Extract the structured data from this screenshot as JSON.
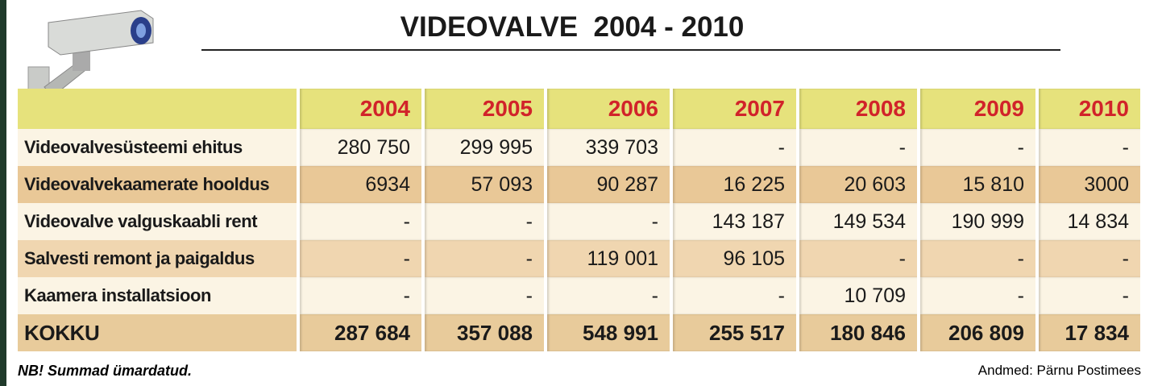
{
  "header": {
    "title": "VIDEOVALVE  2004 - 2010"
  },
  "table": {
    "columns": [
      "2004",
      "2005",
      "2006",
      "2007",
      "2008",
      "2009",
      "2010"
    ],
    "rows": [
      {
        "label": "Videovalvesüsteemi ehitus",
        "cells": [
          "280 750",
          "299 995",
          "339 703",
          "-",
          "-",
          "-",
          "-"
        ]
      },
      {
        "label": "Videovalvekaamerate hooldus",
        "cells": [
          "6934",
          "57 093",
          "90 287",
          "16 225",
          "20 603",
          "15 810",
          "3000"
        ]
      },
      {
        "label": "Videovalve valguskaabli rent",
        "cells": [
          "-",
          "-",
          "-",
          "143 187",
          "149 534",
          "190 999",
          "14 834"
        ]
      },
      {
        "label": "Salvesti remont ja paigaldus",
        "cells": [
          "-",
          "-",
          "119 001",
          "96 105",
          "-",
          "-",
          "-"
        ]
      },
      {
        "label": "Kaamera installatsioon",
        "cells": [
          "-",
          "-",
          "-",
          "-",
          "10 709",
          "-",
          "-"
        ]
      }
    ],
    "total": {
      "label": "KOKKU",
      "cells": [
        "287 684",
        "357 088",
        "548 991",
        "255 517",
        "180 846",
        "206 809",
        "17 834"
      ]
    }
  },
  "footer": {
    "note": "NB! Summad ümardatud.",
    "source": "Andmed: Pärnu Postimees"
  }
}
